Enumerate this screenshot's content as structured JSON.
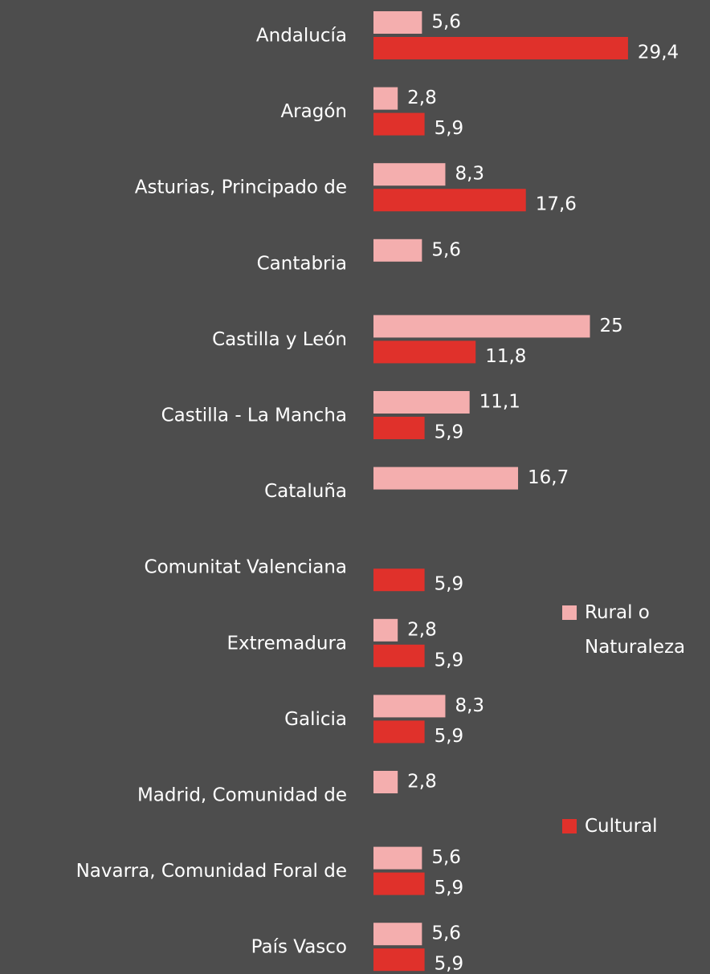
{
  "chart_data": {
    "type": "bar",
    "orientation": "horizontal",
    "categories": [
      "Andalucía",
      "Aragón",
      "Asturias, Principado de",
      "Cantabria",
      "Castilla y León",
      "Castilla - La Mancha",
      "Cataluña",
      "Comunitat Valenciana",
      "Extremadura",
      "Galicia",
      "Madrid, Comunidad de",
      "Navarra, Comunidad Foral de",
      "País Vasco"
    ],
    "series": [
      {
        "name": "Rural o Naturaleza",
        "color": "#f4aeae",
        "values": [
          5.6,
          2.8,
          8.3,
          5.6,
          25,
          11.1,
          16.7,
          null,
          2.8,
          8.3,
          2.8,
          5.6,
          5.6
        ],
        "value_labels": [
          "5,6",
          "2,8",
          "8,3",
          "5,6",
          "25",
          "11,1",
          "16,7",
          null,
          "2,8",
          "8,3",
          "2,8",
          "5,6",
          "5,6"
        ]
      },
      {
        "name": "Cultural",
        "color": "#e0312b",
        "values": [
          29.4,
          5.9,
          17.6,
          null,
          11.8,
          5.9,
          null,
          5.9,
          5.9,
          5.9,
          null,
          5.9,
          5.9
        ],
        "value_labels": [
          "29,4",
          "5,9",
          "17,6",
          null,
          "11,8",
          "5,9",
          null,
          "5,9",
          "5,9",
          "5,9",
          null,
          "5,9",
          "5,9"
        ]
      }
    ],
    "legend": "right"
  }
}
